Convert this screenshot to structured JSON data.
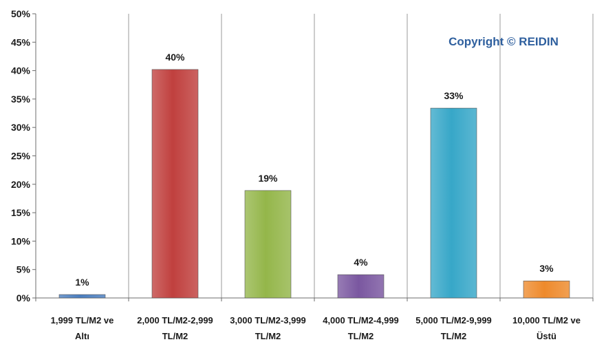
{
  "chart_data": {
    "type": "bar",
    "categories": [
      [
        "1,999 TL/M2 ve",
        "Altı"
      ],
      [
        "2,000 TL/M2-2,999",
        "TL/M2"
      ],
      [
        "3,000 TL/M2-3,999",
        "TL/M2"
      ],
      [
        "4,000 TL/M2-4,999",
        "TL/M2"
      ],
      [
        "5,000 TL/M2-9,999",
        "TL/M2"
      ],
      [
        "10,000 TL/M2 ve",
        "Üstü"
      ]
    ],
    "values": [
      1,
      40,
      19,
      4,
      33,
      3
    ],
    "bar_values": [
      0.6,
      40.2,
      18.9,
      4.1,
      33.4,
      3.0
    ],
    "data_labels": [
      "1%",
      "40%",
      "19%",
      "4%",
      "33%",
      "3%"
    ],
    "colors": [
      "#4a7ec0",
      "#c0403e",
      "#94b64a",
      "#7a57a0",
      "#37a7c8",
      "#ee8a2c"
    ],
    "ylim": [
      0,
      50
    ],
    "yticks": [
      "0%",
      "5%",
      "10%",
      "15%",
      "20%",
      "25%",
      "30%",
      "35%",
      "40%",
      "45%",
      "50%"
    ],
    "grid": "vertical",
    "title": "",
    "xlabel": "",
    "ylabel": ""
  },
  "watermark": {
    "text": "Copyright © REIDIN",
    "color": "#2e5f9e"
  }
}
